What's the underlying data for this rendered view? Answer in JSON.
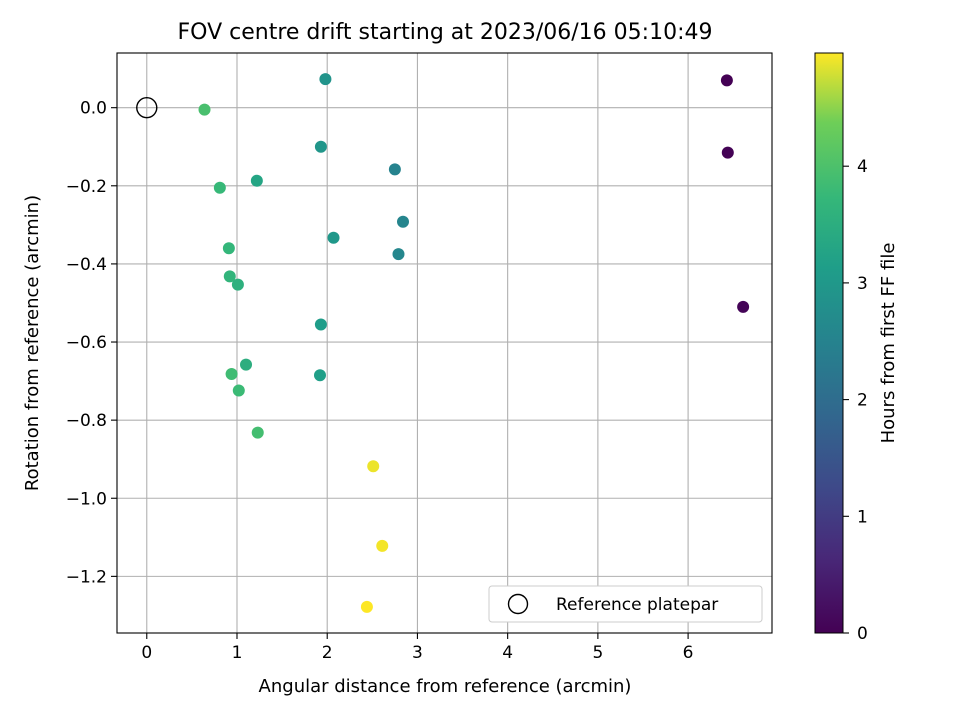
{
  "chart_data": {
    "type": "scatter",
    "title": "FOV centre drift starting at 2023/06/16 05:10:49",
    "xlabel": "Angular distance from reference (arcmin)",
    "ylabel": "Rotation from reference (arcmin)",
    "xlim": [
      -0.33,
      6.93
    ],
    "ylim": [
      -1.345,
      0.14
    ],
    "xticks": [
      0,
      1,
      2,
      3,
      4,
      5,
      6
    ],
    "yticks": [
      0.0,
      -0.2,
      -0.4,
      -0.6,
      -0.8,
      -1.0,
      -1.2
    ],
    "ytick_labels": [
      "0.0",
      "−0.2",
      "−0.4",
      "−0.6",
      "−0.8",
      "−1.0",
      "−1.2"
    ],
    "grid": true,
    "colormap": "viridis",
    "colorbar": {
      "label": "Hours from first FF file",
      "range": [
        0,
        4.97
      ],
      "ticks": [
        0,
        1,
        2,
        3,
        4
      ]
    },
    "reference_point": {
      "x": 0,
      "y": 0,
      "label": "Reference platepar"
    },
    "legend": {
      "location": "lower-right",
      "entries": [
        "Reference platepar"
      ]
    },
    "points": [
      {
        "x": 6.43,
        "y": 0.07,
        "hours": 0.0
      },
      {
        "x": 6.44,
        "y": -0.115,
        "hours": 0.02
      },
      {
        "x": 6.61,
        "y": -0.51,
        "hours": 0.05
      },
      {
        "x": 2.75,
        "y": -0.158,
        "hours": 2.5
      },
      {
        "x": 2.84,
        "y": -0.292,
        "hours": 2.55
      },
      {
        "x": 2.79,
        "y": -0.375,
        "hours": 2.6
      },
      {
        "x": 1.98,
        "y": 0.073,
        "hours": 2.9
      },
      {
        "x": 1.93,
        "y": -0.1,
        "hours": 2.95
      },
      {
        "x": 2.07,
        "y": -0.333,
        "hours": 3.0
      },
      {
        "x": 1.93,
        "y": -0.555,
        "hours": 3.1
      },
      {
        "x": 1.92,
        "y": -0.685,
        "hours": 3.15
      },
      {
        "x": 1.22,
        "y": -0.187,
        "hours": 3.3
      },
      {
        "x": 1.1,
        "y": -0.658,
        "hours": 3.5
      },
      {
        "x": 1.01,
        "y": -0.453,
        "hours": 3.55
      },
      {
        "x": 0.92,
        "y": -0.432,
        "hours": 3.65
      },
      {
        "x": 0.91,
        "y": -0.36,
        "hours": 3.7
      },
      {
        "x": 0.81,
        "y": -0.205,
        "hours": 3.75
      },
      {
        "x": 1.02,
        "y": -0.724,
        "hours": 3.8
      },
      {
        "x": 0.94,
        "y": -0.682,
        "hours": 3.85
      },
      {
        "x": 1.23,
        "y": -0.832,
        "hours": 3.9
      },
      {
        "x": 0.64,
        "y": -0.005,
        "hours": 3.95
      },
      {
        "x": 2.51,
        "y": -0.918,
        "hours": 4.9
      },
      {
        "x": 2.61,
        "y": -1.122,
        "hours": 4.93
      },
      {
        "x": 2.44,
        "y": -1.278,
        "hours": 4.97
      }
    ]
  }
}
